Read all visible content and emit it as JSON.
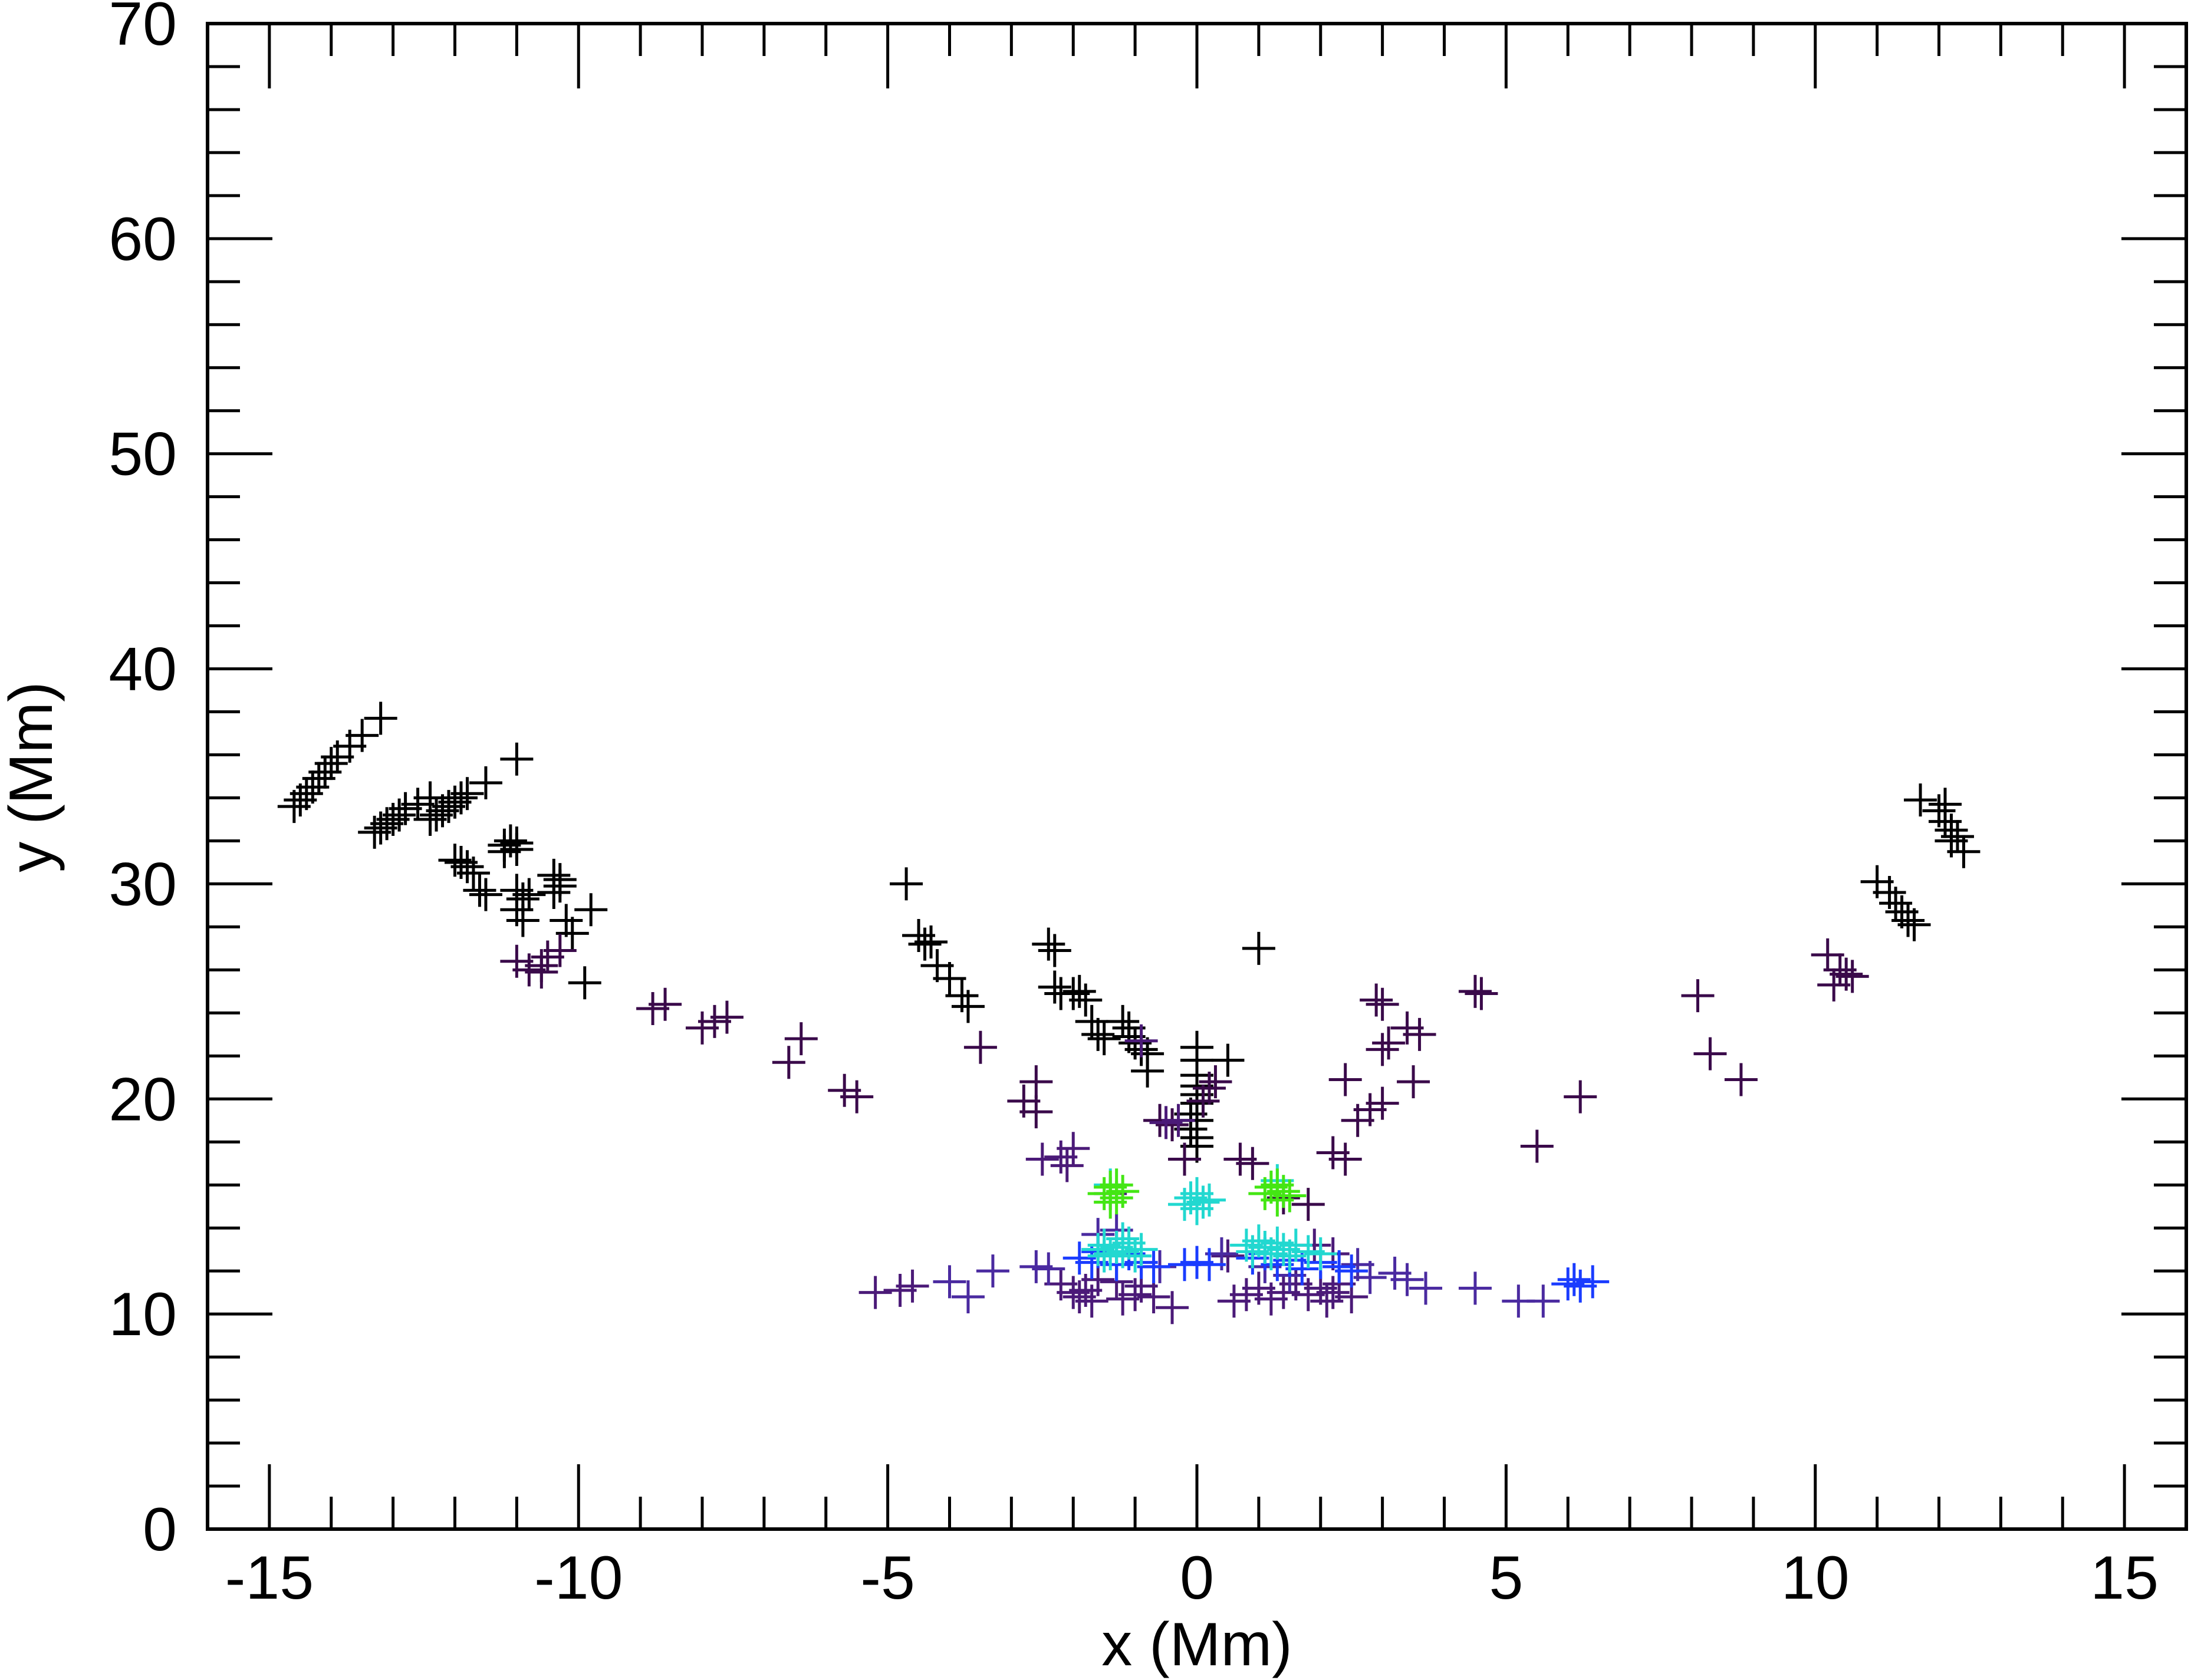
{
  "chart_data": {
    "type": "scatter",
    "title": "",
    "xlabel": "x (Mm)",
    "ylabel": "y (Mm)",
    "xlim": [
      -16,
      16
    ],
    "ylim": [
      0,
      70
    ],
    "xticks": [
      -15,
      -10,
      -5,
      0,
      5,
      10,
      15
    ],
    "xtick_labels": [
      "-15",
      "-10",
      "-5",
      "0",
      "5",
      "10",
      "15"
    ],
    "yticks": [
      0,
      10,
      20,
      30,
      40,
      50,
      60,
      70
    ],
    "ytick_labels": [
      "0",
      "10",
      "20",
      "30",
      "40",
      "50",
      "60",
      "70"
    ],
    "x_minor_step": 1,
    "y_minor_step": 2,
    "marker": "plus",
    "grid": false,
    "colors": {
      "black": "#000000",
      "dark_purple": "#3a0a4a",
      "purple": "#4b1a78",
      "indigo": "#4a2aa0",
      "blue": "#1a3cff",
      "cyan": "#22d8d0",
      "green": "#44e614"
    },
    "series": [
      {
        "color": "black",
        "points": [
          [
            -14.6,
            33.6
          ],
          [
            -14.5,
            33.9
          ],
          [
            -14.4,
            34.2
          ],
          [
            -14.3,
            34.5
          ],
          [
            -14.2,
            34.9
          ],
          [
            -14.1,
            35.2
          ],
          [
            -14.0,
            35.6
          ],
          [
            -13.9,
            35.9
          ],
          [
            -13.7,
            36.4
          ],
          [
            -13.5,
            36.9
          ],
          [
            -13.2,
            37.7
          ],
          [
            -13.3,
            32.4
          ],
          [
            -13.2,
            32.6
          ],
          [
            -13.1,
            32.8
          ],
          [
            -13.0,
            33.0
          ],
          [
            -12.9,
            33.2
          ],
          [
            -12.8,
            33.5
          ],
          [
            -12.6,
            33.7
          ],
          [
            -12.4,
            34.0
          ],
          [
            -12.4,
            33.0
          ],
          [
            -12.3,
            33.2
          ],
          [
            -12.2,
            33.4
          ],
          [
            -12.1,
            33.6
          ],
          [
            -12.0,
            33.8
          ],
          [
            -11.9,
            34.0
          ],
          [
            -11.8,
            34.2
          ],
          [
            -11.5,
            34.7
          ],
          [
            -11.0,
            35.8
          ],
          [
            -12.0,
            31.1
          ],
          [
            -11.9,
            31.0
          ],
          [
            -11.8,
            30.8
          ],
          [
            -11.7,
            30.5
          ],
          [
            -11.6,
            29.7
          ],
          [
            -11.5,
            29.5
          ],
          [
            -11.2,
            31.8
          ],
          [
            -11.1,
            32.0
          ],
          [
            -11.0,
            31.6
          ],
          [
            -11.2,
            31.5
          ],
          [
            -11.0,
            31.9
          ],
          [
            -11.0,
            29.7
          ],
          [
            -10.9,
            29.3
          ],
          [
            -11.0,
            28.8
          ],
          [
            -10.9,
            28.3
          ],
          [
            -10.8,
            29.5
          ],
          [
            -10.4,
            30.4
          ],
          [
            -10.3,
            30.2
          ],
          [
            -10.3,
            29.9
          ],
          [
            -10.4,
            29.6
          ],
          [
            -10.2,
            28.3
          ],
          [
            -10.1,
            27.7
          ],
          [
            -9.8,
            28.8
          ],
          [
            -9.9,
            25.4
          ],
          [
            -4.7,
            30.0
          ],
          [
            -4.5,
            27.6
          ],
          [
            -4.4,
            27.2
          ],
          [
            -4.3,
            27.3
          ],
          [
            -4.2,
            26.2
          ],
          [
            -4.0,
            25.6
          ],
          [
            -3.8,
            24.8
          ],
          [
            -3.7,
            24.3
          ],
          [
            -2.4,
            27.2
          ],
          [
            -2.3,
            26.9
          ],
          [
            -2.3,
            25.2
          ],
          [
            -2.2,
            24.9
          ],
          [
            -2.0,
            24.9
          ],
          [
            -1.9,
            25.0
          ],
          [
            -1.8,
            24.6
          ],
          [
            -1.7,
            23.6
          ],
          [
            -1.6,
            23.0
          ],
          [
            -1.5,
            22.8
          ],
          [
            -1.2,
            23.6
          ],
          [
            -1.1,
            23.3
          ],
          [
            -1.1,
            22.9
          ],
          [
            -1.0,
            22.6
          ],
          [
            -0.9,
            22.3
          ],
          [
            -0.8,
            22.1
          ],
          [
            -0.8,
            21.3
          ],
          [
            0.0,
            22.4
          ],
          [
            0.0,
            21.8
          ],
          [
            0.0,
            21.1
          ],
          [
            0.0,
            20.6
          ],
          [
            0.0,
            20.2
          ],
          [
            0.0,
            19.8
          ],
          [
            -0.1,
            19.3
          ],
          [
            0.0,
            19.0
          ],
          [
            -0.1,
            18.6
          ],
          [
            0.0,
            18.2
          ],
          [
            0.0,
            17.8
          ],
          [
            0.5,
            21.8
          ],
          [
            1.0,
            27.0
          ],
          [
            11.7,
            33.9
          ],
          [
            12.0,
            33.4
          ],
          [
            12.1,
            32.9
          ],
          [
            12.2,
            32.5
          ],
          [
            12.3,
            32.2
          ],
          [
            12.1,
            33.7
          ],
          [
            12.4,
            31.5
          ],
          [
            12.2,
            32.0
          ],
          [
            11.0,
            30.1
          ],
          [
            11.2,
            29.6
          ],
          [
            11.3,
            29.1
          ],
          [
            11.4,
            28.7
          ],
          [
            11.5,
            28.3
          ],
          [
            11.6,
            28.1
          ]
        ]
      },
      {
        "color": "dark_purple",
        "points": [
          [
            -11.0,
            26.4
          ],
          [
            -10.8,
            26.0
          ],
          [
            -10.6,
            26.2
          ],
          [
            -10.5,
            26.6
          ],
          [
            -10.3,
            26.9
          ],
          [
            -10.6,
            25.9
          ],
          [
            -8.8,
            24.2
          ],
          [
            -8.6,
            24.4
          ],
          [
            -8.0,
            23.3
          ],
          [
            -7.8,
            23.6
          ],
          [
            -7.6,
            23.8
          ],
          [
            -6.6,
            21.7
          ],
          [
            -6.4,
            22.8
          ],
          [
            -5.7,
            20.4
          ],
          [
            -5.5,
            20.1
          ],
          [
            -3.5,
            22.4
          ],
          [
            -2.6,
            20.8
          ],
          [
            -2.8,
            19.9
          ],
          [
            -2.6,
            19.4
          ],
          [
            -0.6,
            19.0
          ],
          [
            -0.4,
            18.8
          ],
          [
            -0.2,
            17.2
          ],
          [
            0.2,
            20.5
          ],
          [
            0.3,
            20.8
          ],
          [
            0.1,
            19.9
          ],
          [
            0.7,
            17.2
          ],
          [
            0.9,
            17.0
          ],
          [
            1.4,
            15.4
          ],
          [
            1.8,
            15.1
          ],
          [
            2.9,
            24.6
          ],
          [
            3.0,
            24.4
          ],
          [
            3.0,
            22.3
          ],
          [
            3.1,
            22.6
          ],
          [
            3.4,
            23.3
          ],
          [
            3.6,
            23.0
          ],
          [
            2.4,
            20.9
          ],
          [
            3.5,
            20.8
          ],
          [
            2.8,
            19.5
          ],
          [
            2.6,
            19.0
          ],
          [
            3.0,
            19.8
          ],
          [
            2.2,
            17.5
          ],
          [
            2.4,
            17.2
          ],
          [
            4.5,
            25.0
          ],
          [
            4.6,
            24.9
          ],
          [
            5.5,
            17.8
          ],
          [
            6.2,
            20.1
          ],
          [
            8.1,
            24.8
          ],
          [
            8.3,
            22.1
          ],
          [
            8.8,
            20.9
          ],
          [
            10.2,
            26.7
          ],
          [
            10.4,
            26.0
          ],
          [
            10.5,
            25.8
          ],
          [
            10.6,
            25.7
          ],
          [
            10.3,
            25.3
          ]
        ]
      },
      {
        "color": "purple",
        "points": [
          [
            -2.5,
            17.2
          ],
          [
            -2.2,
            17.3
          ],
          [
            -2.0,
            17.7
          ],
          [
            -2.1,
            16.9
          ],
          [
            -1.9,
            10.8
          ],
          [
            -1.8,
            11.1
          ],
          [
            -1.7,
            10.6
          ],
          [
            -2.2,
            11.4
          ],
          [
            -2.0,
            11.0
          ],
          [
            -1.6,
            11.6
          ],
          [
            -1.2,
            10.7
          ],
          [
            -1.0,
            10.9
          ],
          [
            -0.9,
            11.3
          ],
          [
            -0.7,
            10.8
          ],
          [
            -1.3,
            11.5
          ],
          [
            -0.4,
            10.3
          ],
          [
            0.6,
            10.6
          ],
          [
            0.8,
            10.9
          ],
          [
            1.0,
            11.2
          ],
          [
            1.2,
            10.7
          ],
          [
            1.4,
            11.0
          ],
          [
            1.6,
            11.4
          ],
          [
            1.8,
            10.9
          ],
          [
            2.1,
            10.6
          ],
          [
            2.2,
            11.0
          ],
          [
            2.3,
            11.4
          ],
          [
            2.0,
            11.2
          ],
          [
            2.5,
            10.8
          ],
          [
            -5.2,
            11.0
          ],
          [
            -4.8,
            11.1
          ],
          [
            -4.6,
            11.3
          ],
          [
            0.5,
            12.7
          ],
          [
            1.9,
            13.2
          ],
          [
            2.2,
            12.8
          ],
          [
            -0.3,
            19.0
          ],
          [
            -0.5,
            18.9
          ],
          [
            -0.9,
            22.7
          ],
          [
            -1.4,
            15.6
          ]
        ]
      },
      {
        "color": "indigo",
        "points": [
          [
            -4.0,
            11.5
          ],
          [
            -3.7,
            10.8
          ],
          [
            -3.3,
            12.0
          ],
          [
            -2.6,
            12.2
          ],
          [
            -2.4,
            12.1
          ],
          [
            -1.6,
            13.7
          ],
          [
            -1.3,
            13.9
          ],
          [
            -0.6,
            12.2
          ],
          [
            0.4,
            12.8
          ],
          [
            1.1,
            12.2
          ],
          [
            1.5,
            11.8
          ],
          [
            2.6,
            12.3
          ],
          [
            2.8,
            11.7
          ],
          [
            3.2,
            11.9
          ],
          [
            3.4,
            11.6
          ],
          [
            3.7,
            11.2
          ],
          [
            4.5,
            11.2
          ],
          [
            5.2,
            10.6
          ],
          [
            5.6,
            10.6
          ]
        ]
      },
      {
        "color": "blue",
        "points": [
          [
            -1.9,
            12.6
          ],
          [
            -1.7,
            12.4
          ],
          [
            -1.6,
            12.9
          ],
          [
            -1.3,
            12.3
          ],
          [
            -1.1,
            12.8
          ],
          [
            -0.9,
            12.4
          ],
          [
            -0.7,
            12.2
          ],
          [
            -0.2,
            12.3
          ],
          [
            0.0,
            12.4
          ],
          [
            0.2,
            12.3
          ],
          [
            0.9,
            12.6
          ],
          [
            1.1,
            12.8
          ],
          [
            1.3,
            12.3
          ],
          [
            1.5,
            12.5
          ],
          [
            1.7,
            12.1
          ],
          [
            2.0,
            12.4
          ],
          [
            2.3,
            12.2
          ],
          [
            2.5,
            12.0
          ],
          [
            6.0,
            11.4
          ],
          [
            6.1,
            11.6
          ],
          [
            6.2,
            11.3
          ],
          [
            6.4,
            11.5
          ]
        ]
      },
      {
        "color": "cyan",
        "points": [
          [
            -1.6,
            13.0
          ],
          [
            -1.5,
            13.2
          ],
          [
            -1.4,
            12.8
          ],
          [
            -1.3,
            13.1
          ],
          [
            -1.2,
            12.9
          ],
          [
            -1.1,
            13.3
          ],
          [
            -1.0,
            12.7
          ],
          [
            -0.9,
            13.0
          ],
          [
            -1.5,
            12.7
          ],
          [
            -1.2,
            13.5
          ],
          [
            -0.1,
            15.4
          ],
          [
            0.0,
            15.6
          ],
          [
            0.1,
            15.2
          ],
          [
            0.2,
            15.3
          ],
          [
            -0.2,
            15.1
          ],
          [
            0.0,
            14.9
          ],
          [
            0.8,
            13.2
          ],
          [
            0.9,
            12.9
          ],
          [
            1.0,
            13.4
          ],
          [
            1.1,
            13.1
          ],
          [
            1.2,
            12.8
          ],
          [
            1.3,
            13.3
          ],
          [
            1.4,
            13.0
          ],
          [
            1.5,
            12.7
          ],
          [
            1.6,
            13.2
          ],
          [
            1.8,
            12.9
          ],
          [
            2.0,
            12.8
          ],
          [
            1.3,
            16.2
          ],
          [
            -1.4,
            16.0
          ]
        ]
      },
      {
        "color": "green",
        "points": [
          [
            -1.5,
            15.6
          ],
          [
            -1.4,
            15.9
          ],
          [
            -1.3,
            15.4
          ],
          [
            -1.2,
            15.7
          ],
          [
            -1.4,
            15.2
          ],
          [
            -1.3,
            16.0
          ],
          [
            1.1,
            15.6
          ],
          [
            1.2,
            15.9
          ],
          [
            1.3,
            15.3
          ],
          [
            1.4,
            15.7
          ],
          [
            1.5,
            15.5
          ],
          [
            1.3,
            16.0
          ]
        ]
      }
    ]
  }
}
